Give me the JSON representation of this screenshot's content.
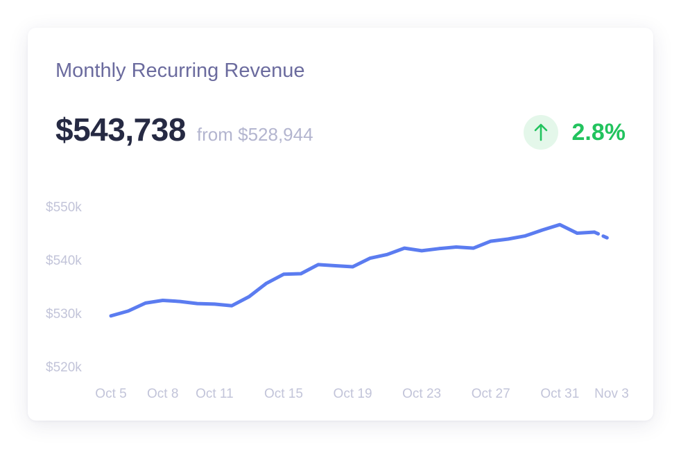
{
  "card": {
    "title": "Monthly Recurring Revenue",
    "current_value": "$543,738",
    "from_label": "from",
    "from_value": "$528,944",
    "change_icon": "arrow-up-icon",
    "change_pct": "2.8%",
    "colors": {
      "title": "#6b6b9e",
      "value": "#262a43",
      "muted": "#b3b5cf",
      "positive": "#22c35e",
      "positive_bg": "#e4f7ea",
      "line": "#5b7cf0"
    }
  },
  "chart_data": {
    "type": "line",
    "title": "",
    "xlabel": "",
    "ylabel": "",
    "ylim": [
      520000,
      550000
    ],
    "y_ticks": [
      550000,
      540000,
      530000,
      520000
    ],
    "y_tick_labels": [
      "$550k",
      "$540k",
      "$530k",
      "$520k"
    ],
    "x_tick_labels": [
      "Oct 5",
      "Oct 8",
      "Oct 11",
      "Oct 15",
      "Oct 19",
      "Oct 23",
      "Oct 27",
      "Oct 31",
      "Nov 3"
    ],
    "x_tick_index": [
      0,
      3,
      6,
      10,
      14,
      18,
      22,
      26,
      29
    ],
    "grid": false,
    "legend": "none",
    "x": [
      "Oct 5",
      "Oct 6",
      "Oct 7",
      "Oct 8",
      "Oct 9",
      "Oct 10",
      "Oct 11",
      "Oct 12",
      "Oct 13",
      "Oct 14",
      "Oct 15",
      "Oct 16",
      "Oct 17",
      "Oct 18",
      "Oct 19",
      "Oct 20",
      "Oct 21",
      "Oct 22",
      "Oct 23",
      "Oct 24",
      "Oct 25",
      "Oct 26",
      "Oct 27",
      "Oct 28",
      "Oct 29",
      "Oct 30",
      "Oct 31",
      "Nov 1",
      "Nov 2",
      "Nov 3"
    ],
    "series": [
      {
        "values": [
          529500,
          530400,
          531900,
          532400,
          532200,
          531800,
          531700,
          531400,
          533100,
          535600,
          537300,
          537400,
          539100,
          538900,
          538700,
          540300,
          541000,
          542200,
          541700,
          542100,
          542400,
          542200,
          543500,
          543900,
          544500,
          545600,
          546600,
          545000,
          545200,
          543738
        ],
        "projected_from_index": 28
      }
    ]
  }
}
